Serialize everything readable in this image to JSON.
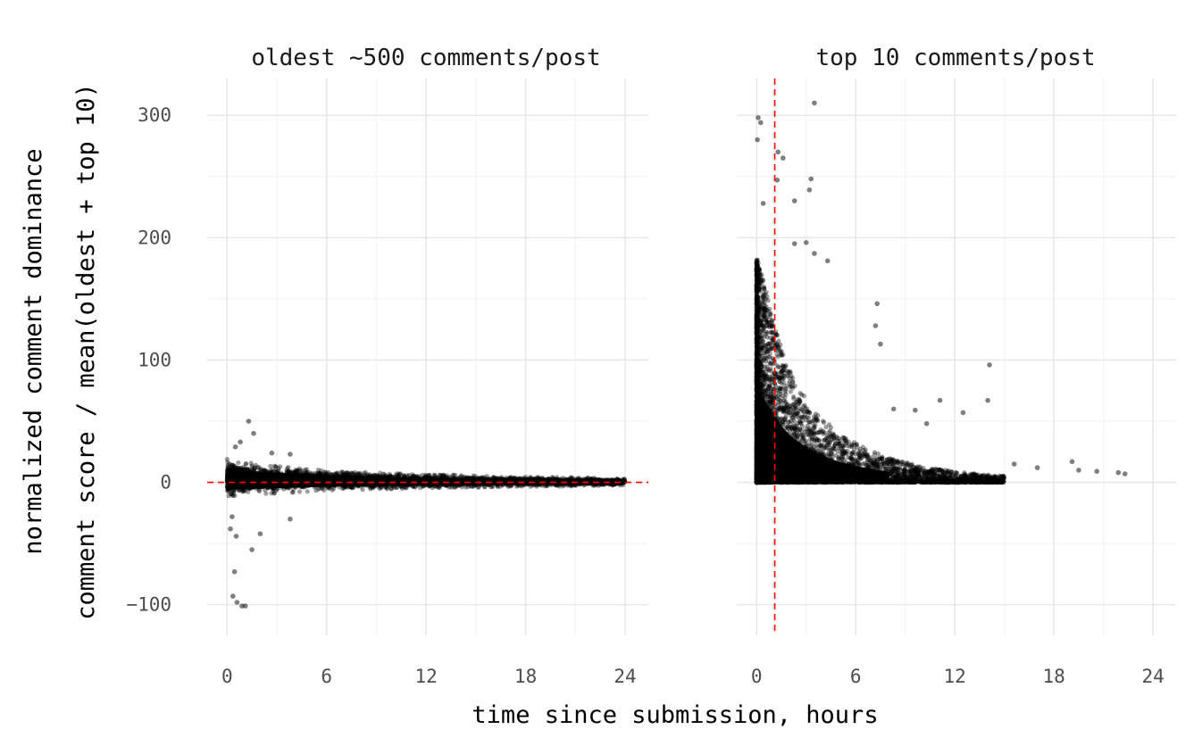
{
  "chart_data": {
    "type": "scatter",
    "xlabel": "time since submission, hours",
    "ylabel_lines": [
      "normalized comment dominance",
      "comment score / mean(oldest + top 10)"
    ],
    "shared_y": {
      "ylim": [
        -125,
        330
      ],
      "yticks": [
        -100,
        0,
        100,
        200,
        300
      ],
      "ytick_labels": [
        "−100",
        "0",
        "100",
        "200",
        "300"
      ]
    },
    "grid": true,
    "panels": [
      {
        "title": "oldest ~500 comments/post",
        "xlim": [
          -1.2,
          25.4
        ],
        "xticks": [
          0,
          6,
          12,
          18,
          24
        ],
        "xtick_labels": [
          "0",
          "6",
          "12",
          "18",
          "24"
        ],
        "reference_line": {
          "orientation": "horizontal",
          "value": 0,
          "color": "#ff0000",
          "style": "dashed"
        },
        "points_description": "dense band of tens of thousands of points around y=0, spread ~±15 near x=0 narrowing to ~±3 by x=24; a few outliers down to about -100 near x=0-1.5 and up to about 50",
        "envelope": {
          "x": [
            0,
            1,
            2,
            4,
            6,
            8,
            10,
            12,
            14,
            16,
            18,
            20,
            22,
            24
          ],
          "upper": [
            16,
            14,
            12,
            10,
            8,
            7,
            6,
            5,
            5,
            4,
            4,
            3.5,
            3,
            2.5
          ],
          "lower": [
            -8,
            -8,
            -7,
            -6,
            -5,
            -4.5,
            -4,
            -3.5,
            -3,
            -3,
            -2.5,
            -2.5,
            -2,
            -2
          ]
        },
        "outliers": [
          {
            "x": 0.35,
            "y": -93
          },
          {
            "x": 0.6,
            "y": -98
          },
          {
            "x": 0.9,
            "y": -101
          },
          {
            "x": 1.1,
            "y": -101
          },
          {
            "x": 0.45,
            "y": -73
          },
          {
            "x": 0.2,
            "y": -38
          },
          {
            "x": 0.55,
            "y": -44
          },
          {
            "x": 1.5,
            "y": -55
          },
          {
            "x": 0.3,
            "y": -28
          },
          {
            "x": 2.0,
            "y": -42
          },
          {
            "x": 3.8,
            "y": -30
          },
          {
            "x": 1.3,
            "y": 50
          },
          {
            "x": 0.8,
            "y": 33
          },
          {
            "x": 0.5,
            "y": 29
          },
          {
            "x": 2.7,
            "y": 24
          },
          {
            "x": 3.8,
            "y": 23
          },
          {
            "x": 1.6,
            "y": 40
          }
        ]
      },
      {
        "title": "top 10 comments/post",
        "xlim": [
          -1.2,
          25.4
        ],
        "xticks": [
          0,
          6,
          12,
          18,
          24
        ],
        "xtick_labels": [
          "0",
          "6",
          "12",
          "18",
          "24"
        ],
        "reference_line": {
          "orientation": "vertical",
          "value": 1.1,
          "color": "#ff0000",
          "style": "dashed"
        },
        "points_description": "points all >= 0; a dense column near x=0-1 reaching ~290-310, decaying envelope to ~50 by x=6 and ~15 by x=12; sparse tail to x~22",
        "envelope": {
          "x": [
            0,
            0.5,
            1,
            1.5,
            2,
            3,
            4,
            5,
            6,
            8,
            10,
            12,
            14,
            16,
            18,
            20,
            22
          ],
          "upper": [
            185,
            160,
            135,
            110,
            92,
            68,
            52,
            40,
            32,
            20,
            13,
            9,
            6,
            4.5,
            3.5,
            2.5,
            2
          ],
          "lower": [
            0,
            0,
            0,
            0,
            0,
            0,
            0,
            0,
            0,
            0,
            0,
            0,
            0,
            0,
            0,
            0,
            0
          ]
        },
        "outliers": [
          {
            "x": 0.1,
            "y": 298
          },
          {
            "x": 0.25,
            "y": 294
          },
          {
            "x": 3.5,
            "y": 310
          },
          {
            "x": 0.05,
            "y": 280
          },
          {
            "x": 1.3,
            "y": 270
          },
          {
            "x": 1.6,
            "y": 265
          },
          {
            "x": 1.25,
            "y": 247
          },
          {
            "x": 3.3,
            "y": 248
          },
          {
            "x": 3.2,
            "y": 239
          },
          {
            "x": 0.4,
            "y": 228
          },
          {
            "x": 2.3,
            "y": 230
          },
          {
            "x": 2.3,
            "y": 195
          },
          {
            "x": 3.0,
            "y": 196
          },
          {
            "x": 3.5,
            "y": 187
          },
          {
            "x": 4.3,
            "y": 181
          },
          {
            "x": 7.3,
            "y": 146
          },
          {
            "x": 7.2,
            "y": 128
          },
          {
            "x": 7.5,
            "y": 113
          },
          {
            "x": 14.1,
            "y": 96
          },
          {
            "x": 14.0,
            "y": 67
          },
          {
            "x": 11.1,
            "y": 67
          },
          {
            "x": 12.5,
            "y": 57
          },
          {
            "x": 9.6,
            "y": 59
          },
          {
            "x": 10.3,
            "y": 48
          },
          {
            "x": 8.3,
            "y": 60
          },
          {
            "x": 15.6,
            "y": 15
          },
          {
            "x": 17.0,
            "y": 12
          },
          {
            "x": 19.1,
            "y": 17
          },
          {
            "x": 19.5,
            "y": 10
          },
          {
            "x": 20.6,
            "y": 9
          },
          {
            "x": 21.9,
            "y": 8
          },
          {
            "x": 22.3,
            "y": 7
          }
        ]
      }
    ]
  }
}
